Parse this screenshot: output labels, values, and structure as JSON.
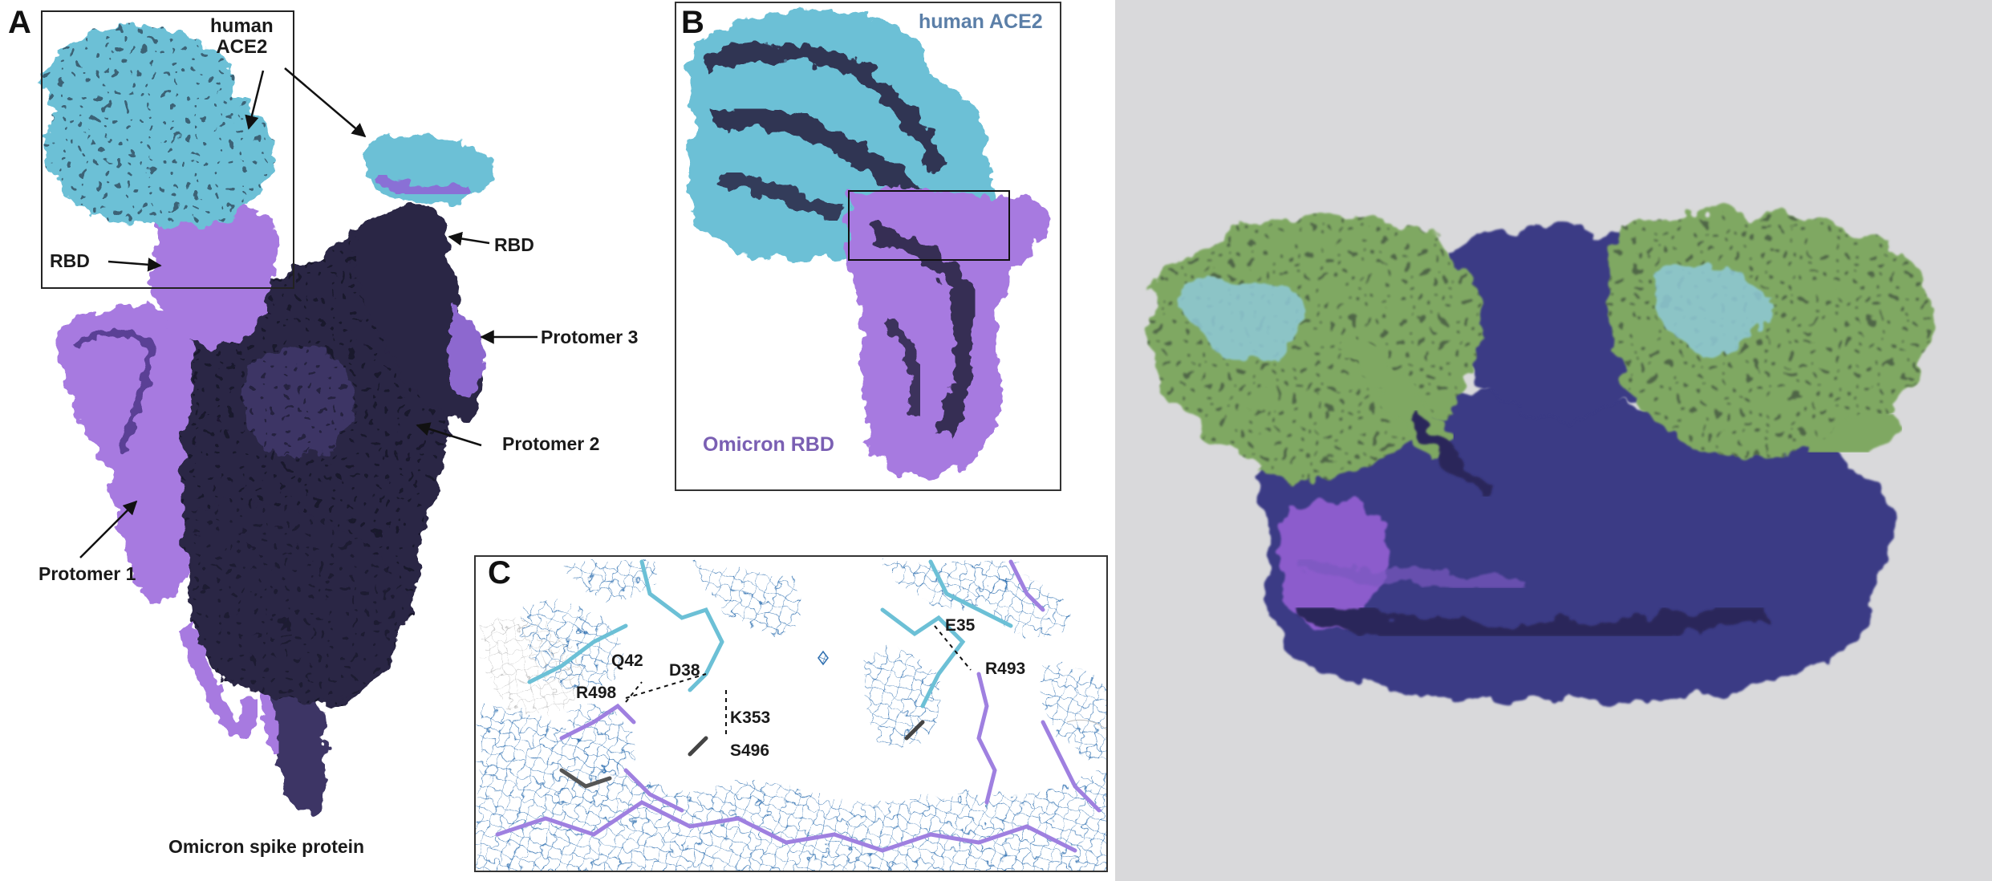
{
  "figure": {
    "panels": {
      "A": {
        "letter": "A",
        "labels": {
          "human_ace2": "human\nACE2",
          "rbd_left": "RBD",
          "rbd_right": "RBD",
          "protomer3": "Protomer 3",
          "protomer2": "Protomer 2",
          "protomer1": "Protomer 1",
          "caption": "Omicron spike protein"
        }
      },
      "B": {
        "letter": "B",
        "labels": {
          "human_ace2": "human ACE2",
          "omicron_rbd": "Omicron RBD"
        }
      },
      "C": {
        "letter": "C",
        "residues": [
          "Q42",
          "D38",
          "R498",
          "K353",
          "S496",
          "E35",
          "R493"
        ]
      }
    },
    "colors": {
      "ace2_cyan": "#6cc0d6",
      "rbd_purple": "#a77ae0",
      "protomer_dark": "#2b2545",
      "protomer_mid": "#3c3565",
      "surface_green": "#7fa862",
      "surface_blue": "#3a3a85",
      "mesh_blue": "#2e6fb0",
      "right_bg": "#d9d9db"
    }
  }
}
